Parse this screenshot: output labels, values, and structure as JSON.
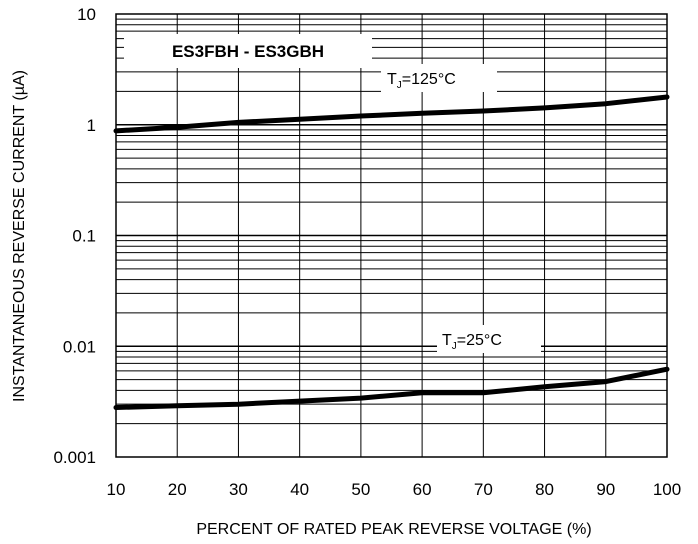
{
  "chart_data": {
    "type": "line",
    "title": "ES3FBH - ES3GBH",
    "xlabel": "PERCENT OF RATED PEAK REVERSE VOLTAGE (%)",
    "ylabel": "INSTANTANEOUS REVERSE CURRENT (µA)",
    "xlim": [
      10,
      100
    ],
    "ylim": [
      0.001,
      10
    ],
    "yscale": "log",
    "grid": true,
    "x_ticks": [
      "10",
      "20",
      "30",
      "40",
      "50",
      "60",
      "70",
      "80",
      "90",
      "100"
    ],
    "y_ticks": [
      "0.001",
      "0.01",
      "0.1",
      "1",
      "10"
    ],
    "series": [
      {
        "name": "TJ=125°C",
        "label_main": "T",
        "label_sub": "J",
        "label_rest": "=125°C",
        "x": [
          10,
          20,
          30,
          40,
          50,
          60,
          70,
          80,
          90,
          100
        ],
        "y": [
          0.88,
          0.95,
          1.05,
          1.12,
          1.2,
          1.27,
          1.33,
          1.42,
          1.55,
          1.78
        ]
      },
      {
        "name": "TJ=25°C",
        "label_main": "T",
        "label_sub": "J",
        "label_rest": "=25°C",
        "x": [
          10,
          20,
          30,
          40,
          50,
          60,
          70,
          80,
          90,
          100
        ],
        "y": [
          0.0028,
          0.0029,
          0.003,
          0.0032,
          0.0034,
          0.0038,
          0.0038,
          0.0043,
          0.0048,
          0.0062
        ]
      }
    ]
  }
}
